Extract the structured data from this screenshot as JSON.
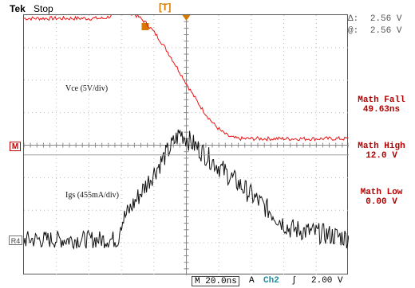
{
  "header": {
    "brand": "Tek",
    "state": "Stop",
    "trigger_marker": "T"
  },
  "cursor": {
    "delta_label": "Δ:",
    "delta_value": "2.56 V",
    "at_label": "@:",
    "at_value": "2.56 V"
  },
  "traces": {
    "vce_label": "Vce (5V/div)",
    "igs_label": "Igs (455mA/div)",
    "math_marker": "M",
    "ref_marker": "R4",
    "vce_high_level_div": 7.9,
    "vce_low_level_div": 4.2,
    "igs_base_level_div": 1.1,
    "igs_peak_level_div": 4.4
  },
  "measurements": [
    {
      "label": "Math Fall",
      "value": "49.63ns"
    },
    {
      "label": "Math High",
      "value": "12.0 V"
    },
    {
      "label": "Math Low",
      "value": "0.00 V"
    }
  ],
  "status": {
    "timebase_prefix": "M",
    "timebase": "20.0ns",
    "trigger_mode": "A",
    "trigger_source": "Ch2",
    "trigger_slope": "∫",
    "trigger_level": "2.00 V"
  },
  "colors": {
    "vce_trace": "#ee1111",
    "igs_trace": "#111111",
    "accent": "#b00000",
    "trigger": "#d47a00",
    "channel": "#1b8fa0"
  }
}
